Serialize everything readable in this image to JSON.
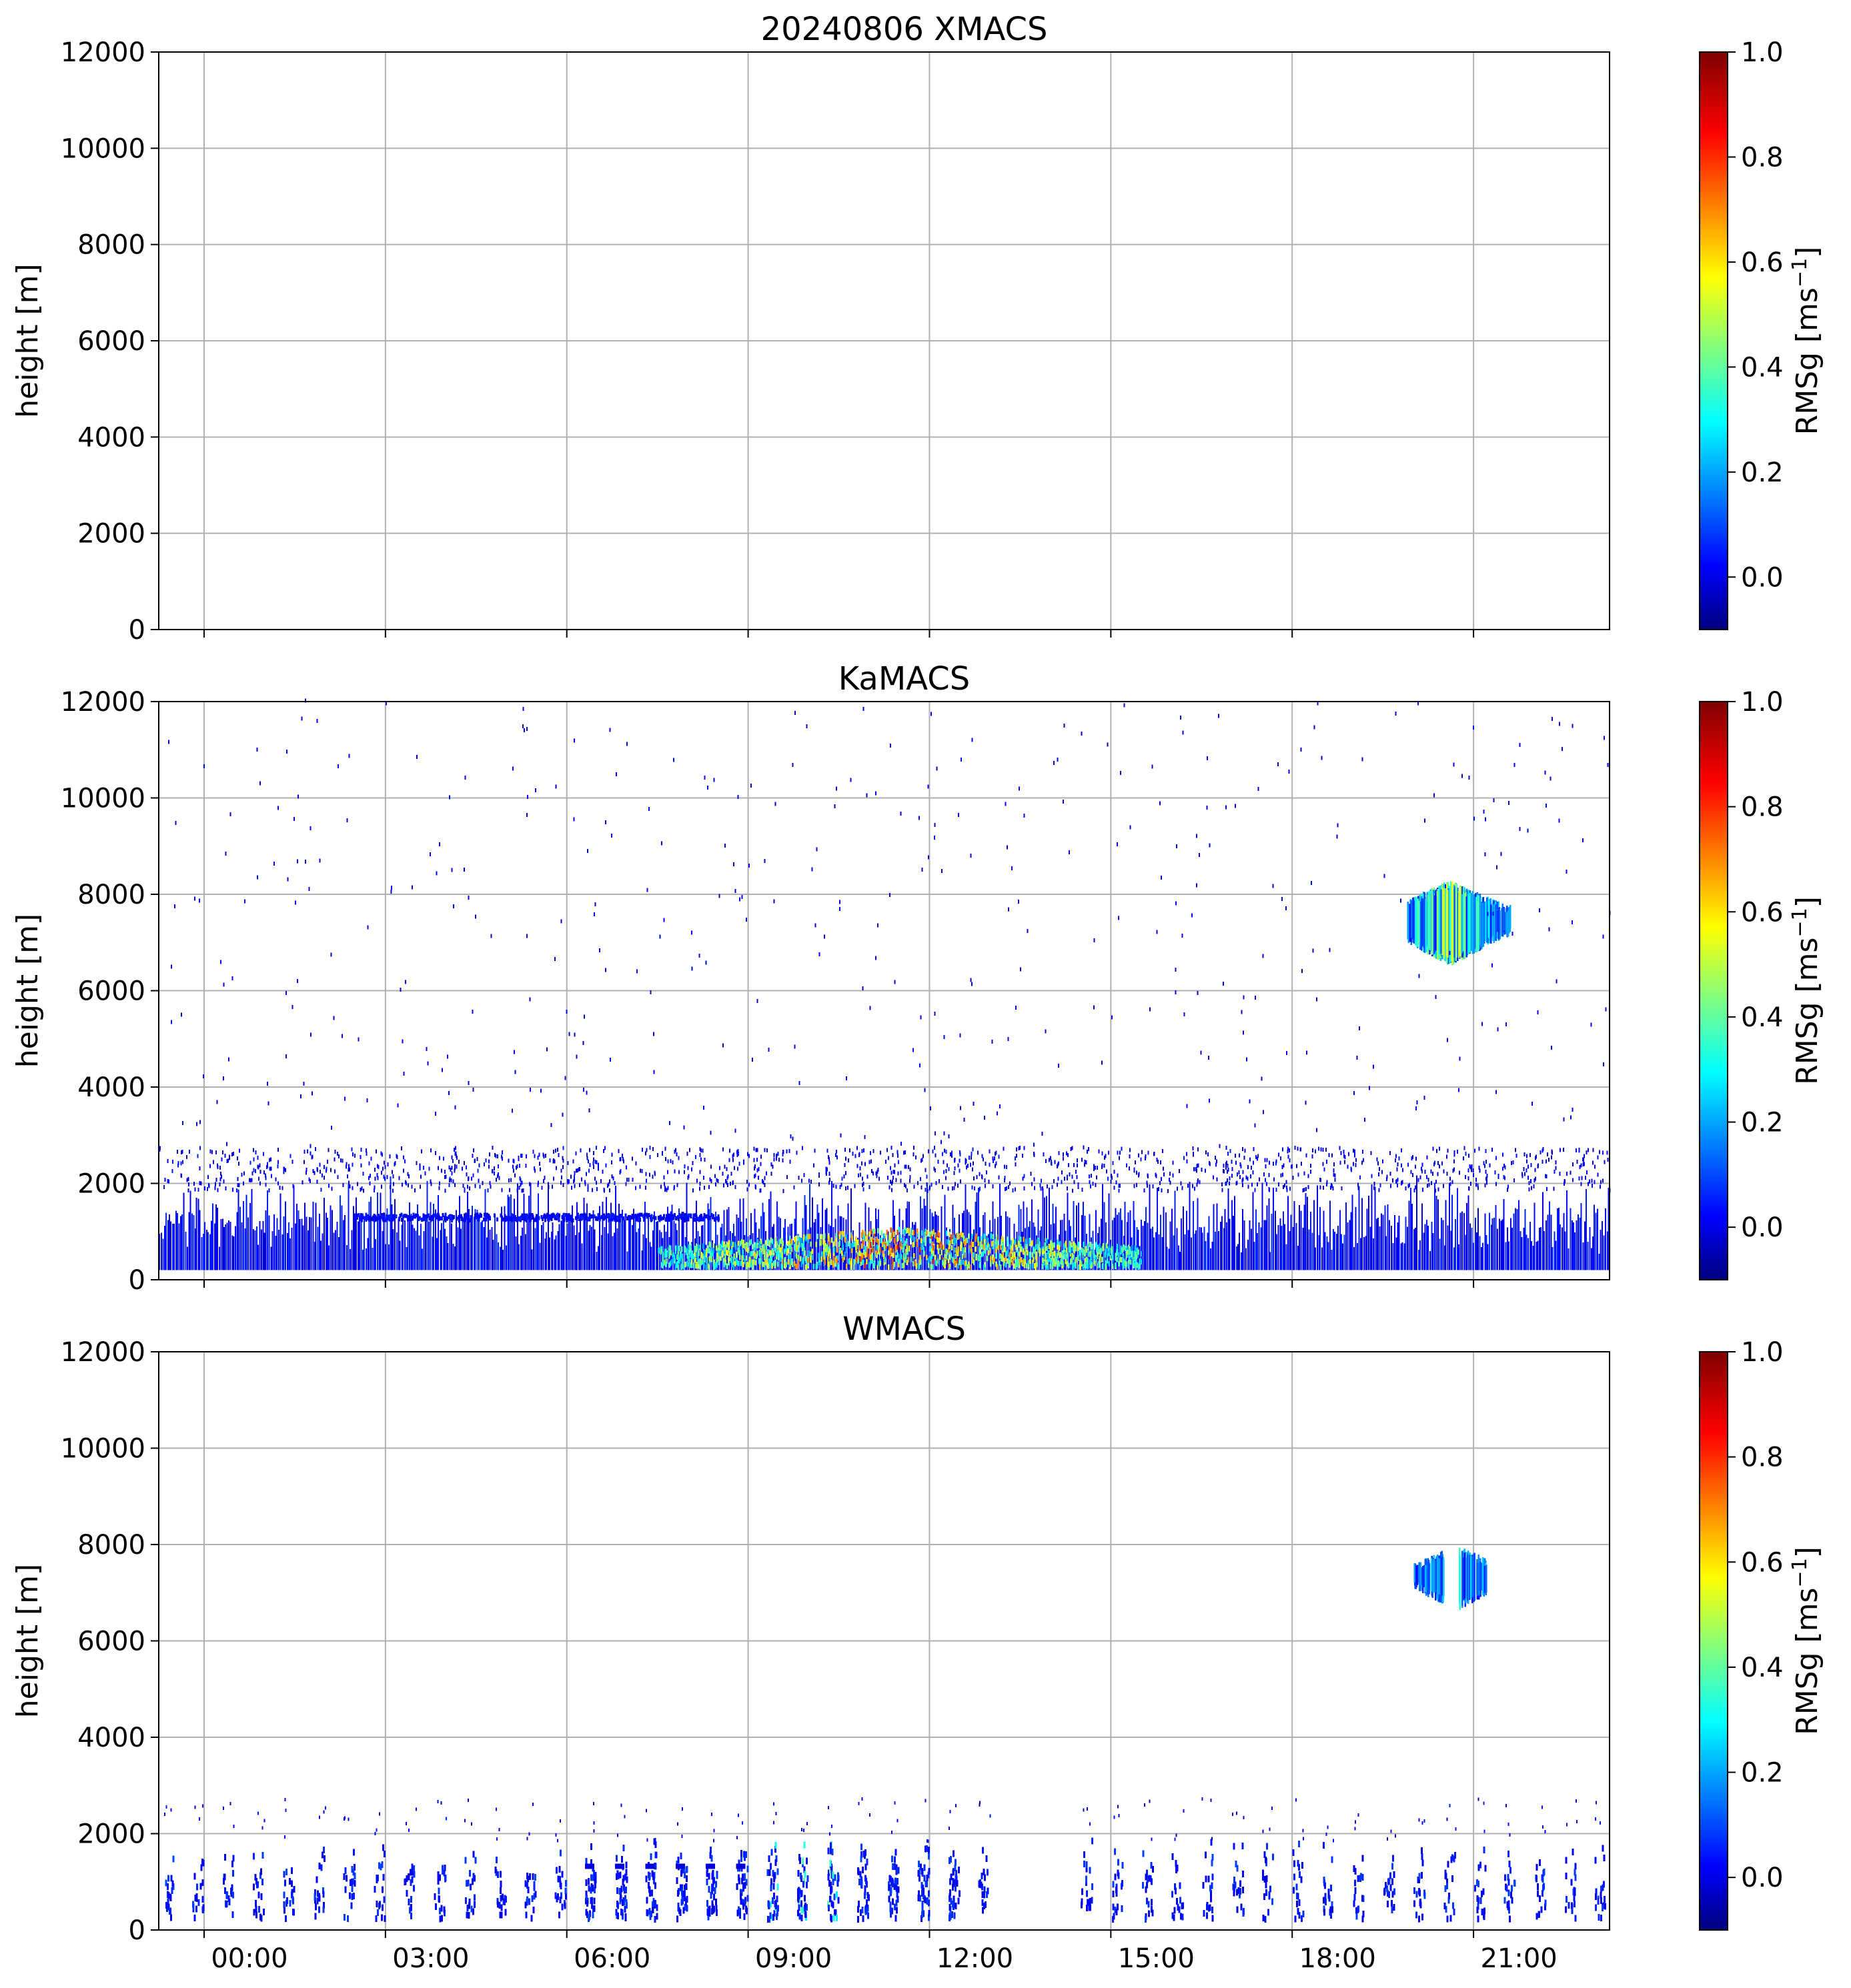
{
  "chart_data": [
    {
      "type": "heatmap",
      "title": "20240806 XMACS",
      "xlabel": "",
      "ylabel": "height [m]",
      "ylim": [
        0,
        12000
      ],
      "yticks": [
        0,
        2000,
        4000,
        6000,
        8000,
        10000,
        12000
      ],
      "xlim_hours": [
        -0.75,
        23.25
      ],
      "xticks_hours": [
        0,
        3,
        6,
        9,
        12,
        15,
        18,
        21
      ],
      "xtick_labels_shown": false,
      "grid": true,
      "colorbar": {
        "label": "RMSg [ms",
        "label_sup": "−1",
        "label_end": "]",
        "vmin": -0.1,
        "vmax": 1.0,
        "ticks": [
          0.0,
          0.2,
          0.4,
          0.6,
          0.8,
          1.0
        ],
        "tick_labels": [
          "0.0",
          "0.2",
          "0.4",
          "0.6",
          "0.8",
          "1.0"
        ],
        "colormap": "jet"
      },
      "features": []
    },
    {
      "type": "heatmap",
      "title": "KaMACS",
      "xlabel": "",
      "ylabel": "height [m]",
      "ylim": [
        0,
        12000
      ],
      "yticks": [
        0,
        2000,
        4000,
        6000,
        8000,
        10000,
        12000
      ],
      "xlim_hours": [
        -0.75,
        23.25
      ],
      "xticks_hours": [
        0,
        3,
        6,
        9,
        12,
        15,
        18,
        21
      ],
      "xtick_labels_shown": false,
      "grid": true,
      "colorbar": {
        "label": "RMSg [ms",
        "label_sup": "−1",
        "label_end": "]",
        "vmin": -0.1,
        "vmax": 1.0,
        "ticks": [
          0.0,
          0.2,
          0.4,
          0.6,
          0.8,
          1.0
        ],
        "tick_labels": [
          "0.0",
          "0.2",
          "0.4",
          "0.6",
          "0.8",
          "1.0"
        ],
        "colormap": "jet"
      },
      "features": [
        {
          "name": "boundary-layer-echo",
          "t_start": -0.75,
          "t_end": 23.25,
          "top_m": 2200,
          "rmsg_typical": 0.1
        },
        {
          "name": "enhanced-turbulence",
          "t_start": 7.5,
          "t_end": 15.5,
          "top_m": 800,
          "rmsg_peak": 0.9
        },
        {
          "name": "elevated-layer",
          "t_start": 2.5,
          "t_end": 8.5,
          "height_m": 1250,
          "rmsg_typical": 0.05
        },
        {
          "name": "upper-cloud",
          "t_start": 19.9,
          "t_end": 21.6,
          "base_m": 6500,
          "top_m": 8300,
          "rmsg_peak": 0.6
        },
        {
          "name": "sparse-noise",
          "t_start": -0.75,
          "t_end": 23.25,
          "bottom_m": 2500,
          "top_m": 12000,
          "rmsg_typical": 0.0
        }
      ]
    },
    {
      "type": "heatmap",
      "title": "WMACS",
      "xlabel": "",
      "ylabel": "height [m]",
      "ylim": [
        0,
        12000
      ],
      "yticks": [
        0,
        2000,
        4000,
        6000,
        8000,
        10000,
        12000
      ],
      "xlim_hours": [
        -0.75,
        23.25
      ],
      "xticks_hours": [
        0,
        3,
        6,
        9,
        12,
        15,
        18,
        21
      ],
      "xtick_labels": [
        "00:00",
        "03:00",
        "06:00",
        "09:00",
        "12:00",
        "15:00",
        "18:00",
        "21:00"
      ],
      "xtick_labels_shown": true,
      "grid": true,
      "colorbar": {
        "label": "RMSg [ms",
        "label_sup": "−1",
        "label_end": "]",
        "vmin": -0.1,
        "vmax": 1.0,
        "ticks": [
          0.0,
          0.2,
          0.4,
          0.6,
          0.8,
          1.0
        ],
        "tick_labels": [
          "0.0",
          "0.2",
          "0.4",
          "0.6",
          "0.8",
          "1.0"
        ],
        "colormap": "jet"
      },
      "features": [
        {
          "name": "periodic-profiles",
          "t_start": -0.7,
          "t_end": 12.9,
          "period_hours": 0.5,
          "top_m": 1500,
          "rmsg_typical": 0.05
        },
        {
          "name": "periodic-profiles-evening",
          "t_start": 14.5,
          "t_end": 23.0,
          "period_hours": 0.5,
          "top_m": 1500,
          "rmsg_typical": 0.05
        },
        {
          "name": "data-gap",
          "t_start": 12.9,
          "t_end": 14.5
        },
        {
          "name": "upper-cloud",
          "t_start": 20.0,
          "t_end": 21.2,
          "base_m": 6600,
          "top_m": 8000,
          "rmsg_peak": 0.35
        }
      ]
    }
  ]
}
